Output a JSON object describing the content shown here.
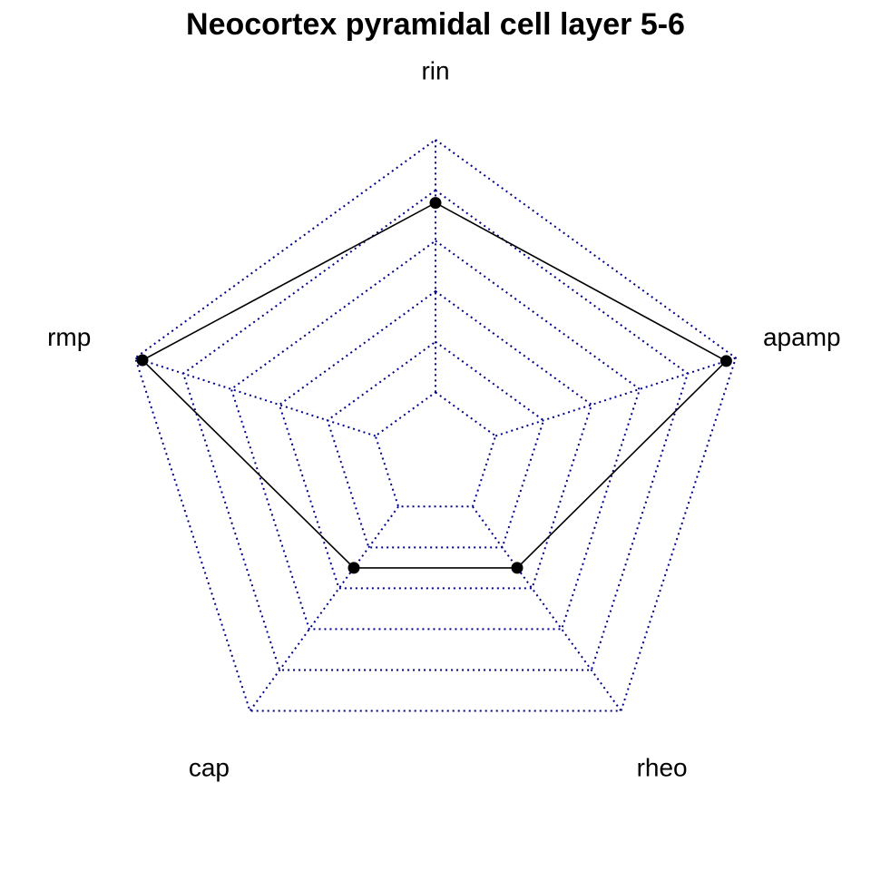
{
  "chart_data": {
    "type": "radar",
    "title": "Neocortex pyramidal cell layer 5-6",
    "axes": [
      "rin",
      "apamp",
      "rheo",
      "cap",
      "rmp"
    ],
    "range": [
      0,
      1
    ],
    "grid_levels": [
      0.2,
      0.4,
      0.6,
      0.8,
      1.0
    ],
    "grid_style": "dotted",
    "series": [
      {
        "name": "Neocortex pyramidal cell layer 5-6",
        "values": [
          0.75,
          0.96,
          0.3,
          0.3,
          0.97
        ]
      }
    ],
    "colors": {
      "grid": "#00008B",
      "series_line": "#000000",
      "series_point": "#000000"
    }
  }
}
